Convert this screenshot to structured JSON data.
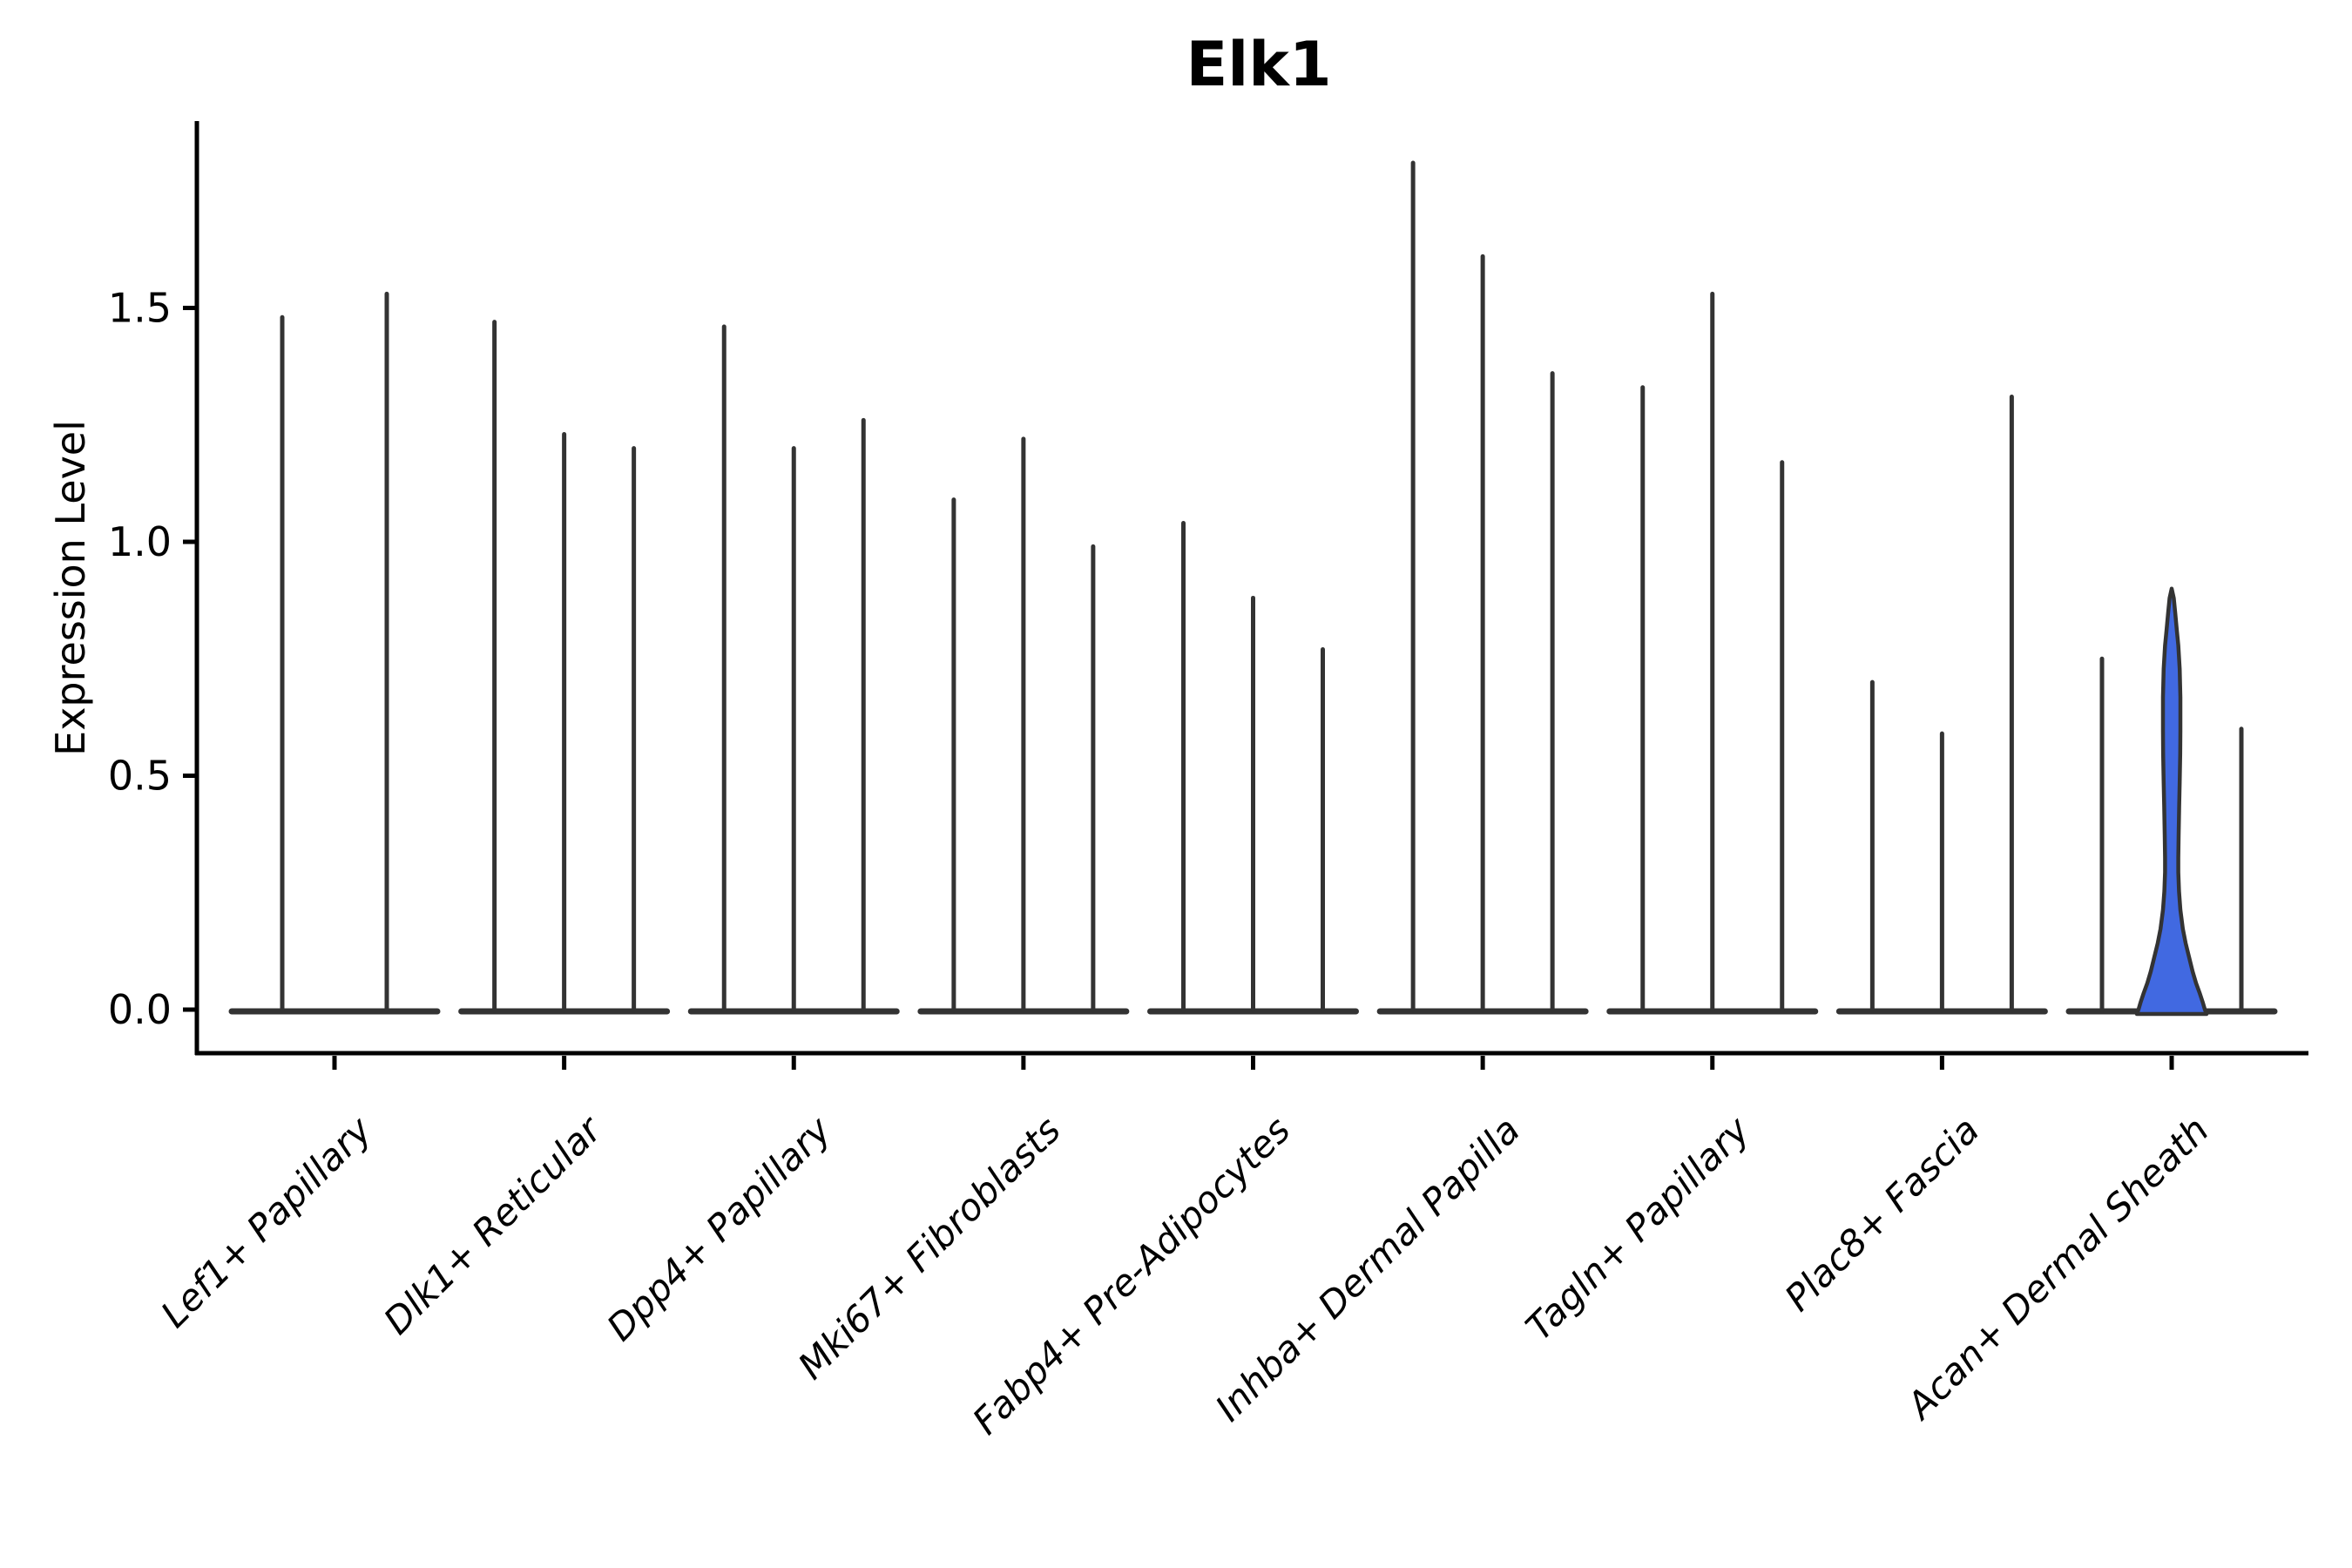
{
  "chart_data": {
    "type": "violin",
    "title": "Elk1",
    "xlabel": "",
    "ylabel": "Expression Level",
    "ytick_labels": [
      "0.0",
      "0.5",
      "1.0",
      "1.5"
    ],
    "ytick_values": [
      0.0,
      0.5,
      1.0,
      1.5
    ],
    "ylim": [
      0.0,
      1.9
    ],
    "grid": false,
    "legend_position": "none",
    "categories": [
      "Lef1+ Papillary",
      "Dlk1+ Reticular",
      "Dpp4+ Papillary",
      "Mki67+ Fibroblasts",
      "Fabp4+ Pre-Adipocytes",
      "Inhba+ Dermal Papilla",
      "Tagln+ Papillary",
      "Plac8+ Fascia",
      "Acan+ Dermal Sheath"
    ],
    "groups": [
      {
        "category": "Lef1+ Papillary",
        "violin_maxima": [
          1.48,
          1.53
        ],
        "highlighted_violin": null
      },
      {
        "category": "Dlk1+ Reticular",
        "violin_maxima": [
          1.47,
          1.23,
          1.2
        ],
        "highlighted_violin": null
      },
      {
        "category": "Dpp4+ Papillary",
        "violin_maxima": [
          1.46,
          1.2,
          1.26
        ],
        "highlighted_violin": null
      },
      {
        "category": "Mki67+ Fibroblasts",
        "violin_maxima": [
          1.09,
          1.22,
          0.99
        ],
        "highlighted_violin": null
      },
      {
        "category": "Fabp4+ Pre-Adipocytes",
        "violin_maxima": [
          1.04,
          0.88,
          0.77
        ],
        "highlighted_violin": null
      },
      {
        "category": "Inhba+ Dermal Papilla",
        "violin_maxima": [
          1.81,
          1.61,
          1.36
        ],
        "highlighted_violin": null
      },
      {
        "category": "Tagln+ Papillary",
        "violin_maxima": [
          1.33,
          1.53,
          1.17
        ],
        "highlighted_violin": null
      },
      {
        "category": "Plac8+ Fascia",
        "violin_maxima": [
          0.7,
          0.59,
          1.31
        ],
        "highlighted_violin": null
      },
      {
        "category": "Acan+ Dermal Sheath",
        "violin_maxima": [
          0.75,
          0.9,
          0.6
        ],
        "highlighted_violin": 1
      }
    ],
    "highlighted_violin_profile": [
      [
        0.9,
        0.0
      ],
      [
        0.88,
        0.06
      ],
      [
        0.85,
        0.1
      ],
      [
        0.81,
        0.15
      ],
      [
        0.78,
        0.19
      ],
      [
        0.73,
        0.23
      ],
      [
        0.67,
        0.25
      ],
      [
        0.6,
        0.25
      ],
      [
        0.55,
        0.245
      ],
      [
        0.49,
        0.23
      ],
      [
        0.44,
        0.215
      ],
      [
        0.38,
        0.2
      ],
      [
        0.33,
        0.19
      ],
      [
        0.3,
        0.19
      ],
      [
        0.26,
        0.21
      ],
      [
        0.22,
        0.25
      ],
      [
        0.18,
        0.32
      ],
      [
        0.15,
        0.4
      ],
      [
        0.12,
        0.5
      ],
      [
        0.09,
        0.6
      ],
      [
        0.065,
        0.7
      ],
      [
        0.045,
        0.8
      ],
      [
        0.025,
        0.89
      ],
      [
        0.01,
        0.95
      ],
      [
        0.0,
        1.0
      ]
    ]
  },
  "colors": {
    "background": "#ffffff",
    "axis": "#000000",
    "text": "#000000",
    "violin_stroke": "#333333",
    "highlight_fill": "#4169E1"
  }
}
